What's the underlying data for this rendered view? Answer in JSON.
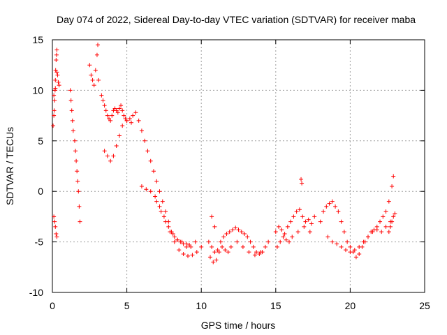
{
  "chart_data": {
    "type": "scatter",
    "title": "Day 074 of 2022, Sidereal Day-to-day VTEC variation (SDTVAR) for receiver maba",
    "xlabel": "GPS time / hours",
    "ylabel": "SDTVAR / TECUs",
    "xlim": [
      0,
      25
    ],
    "ylim": [
      -10,
      15
    ],
    "xticks": [
      0,
      5,
      10,
      15,
      20,
      25
    ],
    "yticks": [
      -10,
      -5,
      0,
      5,
      10,
      15
    ],
    "xtick_labels": [
      "0",
      "5",
      "10",
      "15",
      "20",
      "25"
    ],
    "ytick_labels": [
      "-10",
      "-5",
      "0",
      "5",
      "10",
      "15"
    ],
    "grid": true,
    "marker": "+",
    "color": "#ff0000",
    "series": [
      {
        "name": "maba",
        "x": [
          0.05,
          0.1,
          0.12,
          0.15,
          0.18,
          0.2,
          0.22,
          0.25,
          0.28,
          0.3,
          0.35,
          0.4,
          0.45,
          0.1,
          0.15,
          0.2,
          0.25,
          0.3,
          0.1,
          0.2,
          0.3,
          1.2,
          1.25,
          1.3,
          1.35,
          1.4,
          1.5,
          1.55,
          1.6,
          1.65,
          1.7,
          1.75,
          1.8,
          1.85,
          2.5,
          2.6,
          2.7,
          2.8,
          2.9,
          3.0,
          3.05,
          3.1,
          3.3,
          3.4,
          3.5,
          3.6,
          3.7,
          3.8,
          3.9,
          4.0,
          4.1,
          4.2,
          4.3,
          4.4,
          4.5,
          4.6,
          4.7,
          4.8,
          4.9,
          5.0,
          5.2,
          5.4,
          5.6,
          5.8,
          6.0,
          3.5,
          3.7,
          3.9,
          4.1,
          4.3,
          4.5,
          4.7,
          5.0,
          5.3,
          6.2,
          6.4,
          6.6,
          6.8,
          7.0,
          7.2,
          7.4,
          7.6,
          7.8,
          8.0,
          8.2,
          8.4,
          8.6,
          8.8,
          9.0,
          9.2,
          6.0,
          6.3,
          6.6,
          6.9,
          7.2,
          7.5,
          7.8,
          8.1,
          8.4,
          8.7,
          9.0,
          9.3,
          9.6,
          7.0,
          7.3,
          7.6,
          7.9,
          8.2,
          8.5,
          8.8,
          9.1,
          9.4,
          9.7,
          10.0,
          10.5,
          10.7,
          10.9,
          11.1,
          11.3,
          11.5,
          11.7,
          11.9,
          12.1,
          12.3,
          12.5,
          12.7,
          12.9,
          13.1,
          13.3,
          13.5,
          13.7,
          13.9,
          14.1,
          14.3,
          14.5,
          10.6,
          10.8,
          11.0,
          11.2,
          11.4,
          11.6,
          11.8,
          12.0,
          12.4,
          12.8,
          13.2,
          13.6,
          14.0,
          10.7,
          10.9,
          15.0,
          15.2,
          15.4,
          15.6,
          15.8,
          16.0,
          16.2,
          16.4,
          16.6,
          16.8,
          17.0,
          17.2,
          17.4,
          17.6,
          15.1,
          15.3,
          15.5,
          15.7,
          15.9,
          16.1,
          16.5,
          16.9,
          17.3,
          16.7,
          16.75,
          18.0,
          18.2,
          18.4,
          18.6,
          18.8,
          19.0,
          19.2,
          19.4,
          19.6,
          19.8,
          20.0,
          20.2,
          20.4,
          20.6,
          20.8,
          21.0,
          21.2,
          21.4,
          21.6,
          21.8,
          22.0,
          22.2,
          22.4,
          22.6,
          22.8,
          22.9,
          18.5,
          18.8,
          19.1,
          19.4,
          19.7,
          20.0,
          20.3,
          20.6,
          20.9,
          21.2,
          21.5,
          21.8,
          22.1,
          22.4,
          22.7,
          22.6,
          22.7,
          22.8,
          22.9,
          23.0
        ],
        "y": [
          6.5,
          7.5,
          8.0,
          9.0,
          10.0,
          11.0,
          12.0,
          13.0,
          13.5,
          14.0,
          11.5,
          10.8,
          10.5,
          -2.5,
          -3.0,
          -3.5,
          -4.2,
          -4.5,
          9.5,
          10.2,
          11.8,
          10.0,
          9.0,
          8.0,
          7.0,
          6.0,
          5.0,
          4.0,
          3.0,
          2.0,
          1.0,
          0.0,
          -1.5,
          -3.0,
          12.5,
          11.5,
          11.0,
          10.5,
          12.0,
          13.5,
          14.5,
          11.0,
          9.5,
          9.0,
          8.5,
          8.0,
          7.5,
          7.2,
          7.0,
          7.5,
          8.0,
          8.2,
          8.0,
          7.8,
          8.2,
          8.5,
          8.0,
          7.5,
          7.2,
          7.0,
          7.2,
          7.5,
          7.8,
          7.0,
          6.0,
          4.0,
          3.5,
          3.0,
          3.5,
          4.5,
          5.5,
          6.5,
          7.0,
          6.8,
          5.0,
          4.0,
          3.0,
          2.0,
          1.0,
          0.0,
          -1.0,
          -2.0,
          -3.0,
          -4.0,
          -4.5,
          -4.8,
          -5.0,
          -5.2,
          -5.5,
          -5.3,
          0.5,
          0.2,
          0.0,
          -0.5,
          -1.5,
          -2.5,
          -3.5,
          -4.2,
          -4.8,
          -5.0,
          -5.2,
          -5.5,
          -5.0,
          -1.0,
          -2.0,
          -3.0,
          -4.0,
          -5.0,
          -5.8,
          -6.2,
          -6.4,
          -6.3,
          -6.0,
          -5.5,
          -5.0,
          -5.5,
          -6.0,
          -5.8,
          -5.0,
          -4.5,
          -4.2,
          -4.0,
          -3.8,
          -3.6,
          -3.8,
          -4.0,
          -4.2,
          -4.5,
          -5.0,
          -5.5,
          -6.0,
          -6.2,
          -6.0,
          -5.5,
          -5.0,
          -6.5,
          -7.0,
          -6.8,
          -6.0,
          -5.5,
          -5.8,
          -6.0,
          -5.5,
          -5.0,
          -5.5,
          -6.0,
          -6.3,
          -6.0,
          -2.5,
          -3.5,
          -4.0,
          -3.5,
          -3.8,
          -4.2,
          -3.5,
          -3.0,
          -2.5,
          -2.0,
          -1.8,
          -2.5,
          -3.0,
          -2.8,
          -3.2,
          -2.5,
          -5.5,
          -5.0,
          -4.5,
          -4.8,
          -5.0,
          -4.5,
          -4.0,
          -3.5,
          -4.0,
          1.2,
          0.8,
          -3.0,
          -2.0,
          -1.5,
          -1.2,
          -1.0,
          -1.5,
          -2.0,
          -3.0,
          -4.0,
          -5.0,
          -5.5,
          -6.0,
          -6.5,
          -6.2,
          -5.5,
          -5.0,
          -4.5,
          -4.0,
          -3.8,
          -3.5,
          -3.0,
          -2.5,
          -2.0,
          -1.0,
          0.5,
          1.5,
          -4.5,
          -5.0,
          -5.2,
          -5.5,
          -5.8,
          -6.0,
          -5.8,
          -5.5,
          -5.0,
          -4.5,
          -4.0,
          -3.8,
          -4.0,
          -3.5,
          -3.0,
          -4.0,
          -3.5,
          -3.0,
          -2.5,
          -2.2
        ]
      }
    ]
  }
}
